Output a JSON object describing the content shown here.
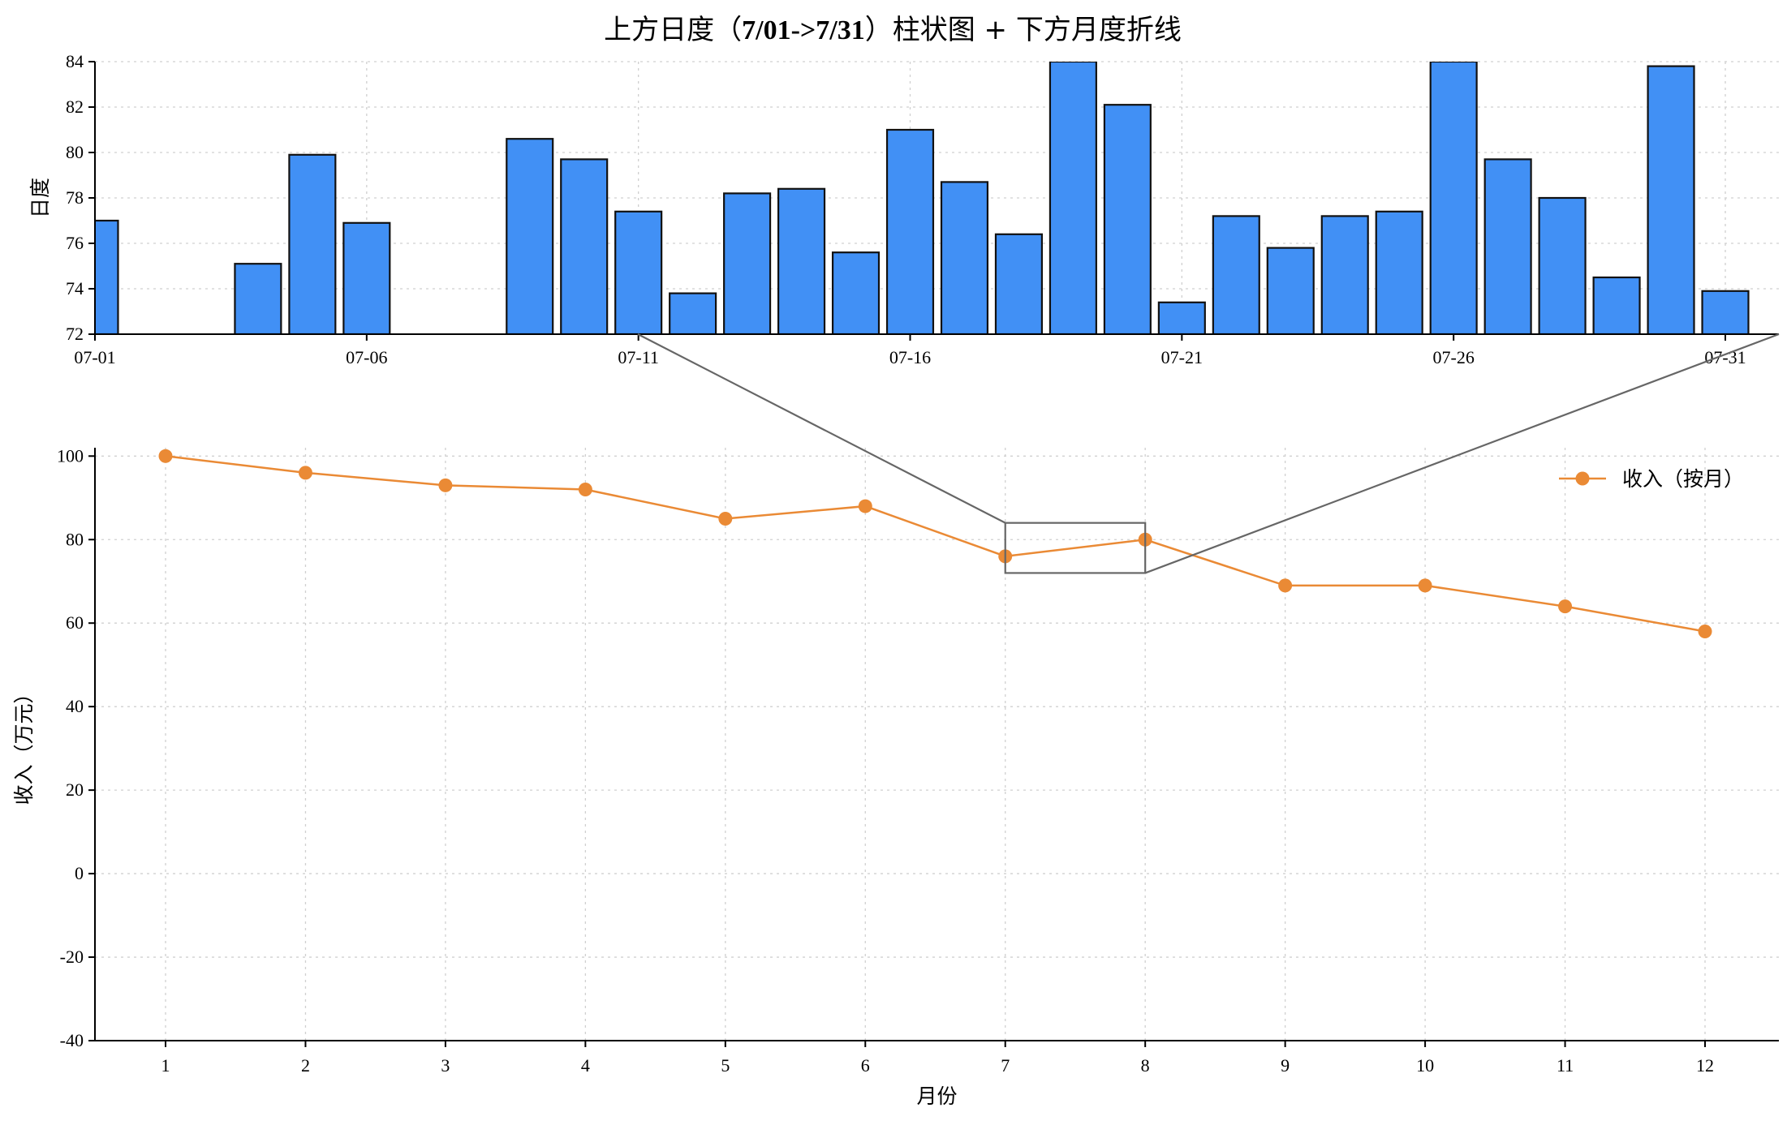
{
  "title_prefix": "上方日度（",
  "title_bold": "7/01->7/31",
  "title_suffix": "）柱状图 + 下方月度折线",
  "colors": {
    "bar": "#4190f5",
    "line": "#ea8a35",
    "zoom": "#666666"
  },
  "chart_data": [
    {
      "type": "bar",
      "ylabel": "日度",
      "ylim": [
        72,
        84
      ],
      "yticks": [
        72,
        74,
        76,
        78,
        80,
        82,
        84
      ],
      "xtick_labels": [
        "07-01",
        "07-06",
        "07-11",
        "07-16",
        "07-21",
        "07-26",
        "07-31"
      ],
      "categories": [
        "07-01",
        "07-02",
        "07-03",
        "07-04",
        "07-05",
        "07-06",
        "07-07",
        "07-08",
        "07-09",
        "07-10",
        "07-11",
        "07-12",
        "07-13",
        "07-14",
        "07-15",
        "07-16",
        "07-17",
        "07-18",
        "07-19",
        "07-20",
        "07-21",
        "07-22",
        "07-23",
        "07-24",
        "07-25",
        "07-26",
        "07-27",
        "07-28",
        "07-29",
        "07-30",
        "07-31"
      ],
      "values": [
        77.0,
        null,
        null,
        75.1,
        79.9,
        76.9,
        null,
        null,
        80.6,
        79.7,
        77.4,
        73.8,
        78.2,
        78.4,
        75.6,
        81.0,
        78.7,
        76.4,
        84.0,
        82.1,
        73.4,
        77.2,
        75.8,
        77.2,
        77.4,
        84.0,
        79.7,
        78.0,
        74.5,
        83.8,
        73.9
      ],
      "grid": true
    },
    {
      "type": "line",
      "xlabel": "月份",
      "ylabel": "收入（万元）",
      "ylim": [
        -40,
        102
      ],
      "yticks": [
        -40,
        -20,
        0,
        20,
        40,
        60,
        80,
        100
      ],
      "x": [
        1,
        2,
        3,
        4,
        5,
        6,
        7,
        8,
        9,
        10,
        11,
        12
      ],
      "series": [
        {
          "name": "收入（按月）",
          "values": [
            100,
            96,
            93,
            92,
            85,
            88,
            76,
            80,
            69,
            69,
            64,
            58
          ]
        }
      ],
      "legend": "top-right",
      "zoom_box": {
        "x": [
          7,
          8
        ],
        "y": [
          72,
          84
        ]
      },
      "grid": true
    }
  ]
}
